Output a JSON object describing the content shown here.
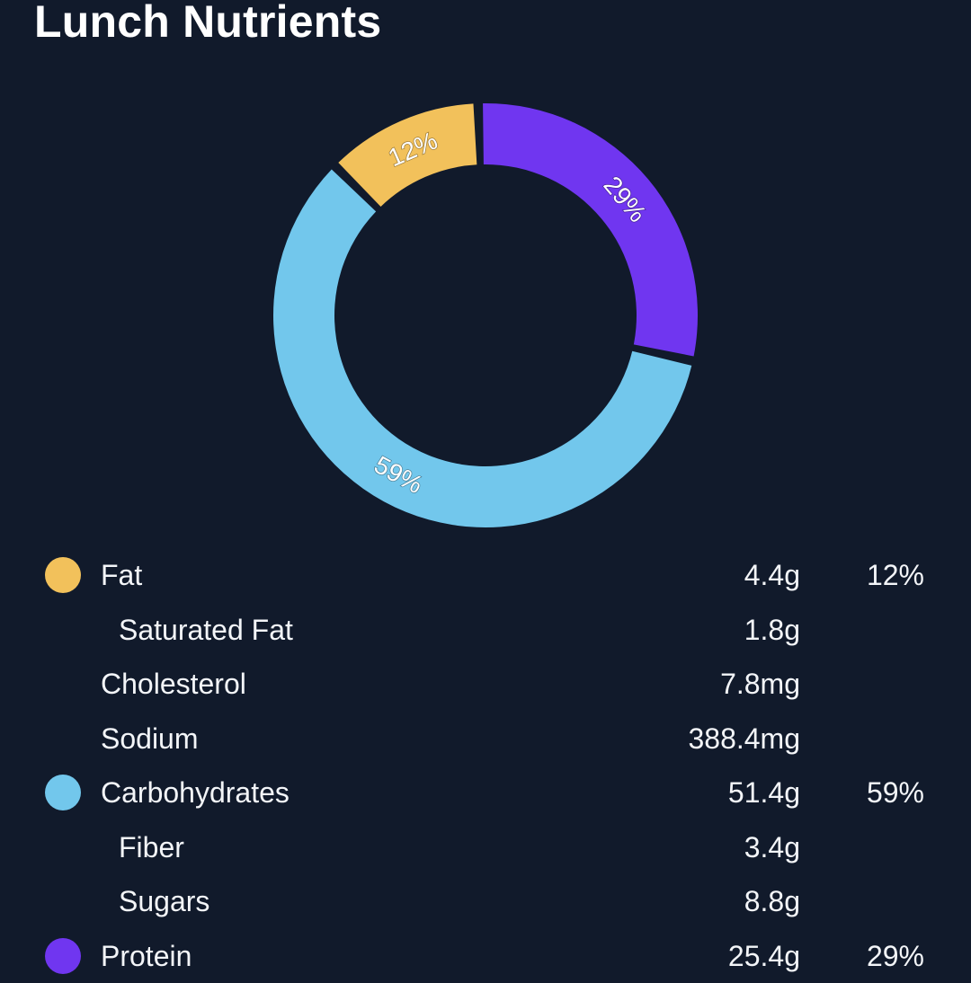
{
  "header": {
    "title": "Lunch Nutrients"
  },
  "colors": {
    "background": "#111a2b",
    "fat": "#f2c15b",
    "carbohydrates": "#72c7ec",
    "protein": "#7036f0"
  },
  "chart_data": {
    "type": "pie",
    "style": "donut",
    "title": "Lunch Nutrients",
    "slices": [
      {
        "name": "Protein",
        "value": 29,
        "label": "29%",
        "color": "#7036f0"
      },
      {
        "name": "Carbohydrates",
        "value": 59,
        "label": "59%",
        "color": "#72c7ec"
      },
      {
        "name": "Fat",
        "value": 12,
        "label": "12%",
        "color": "#f2c15b"
      }
    ]
  },
  "nutrients": [
    {
      "name": "Fat",
      "amount": "4.4g",
      "percent": "12%",
      "color": "#f2c15b",
      "sub": false
    },
    {
      "name": "Saturated Fat",
      "amount": "1.8g",
      "percent": "",
      "color": "",
      "sub": true
    },
    {
      "name": "Cholesterol",
      "amount": "7.8mg",
      "percent": "",
      "color": "",
      "sub": false
    },
    {
      "name": "Sodium",
      "amount": "388.4mg",
      "percent": "",
      "color": "",
      "sub": false
    },
    {
      "name": "Carbohydrates",
      "amount": "51.4g",
      "percent": "59%",
      "color": "#72c7ec",
      "sub": false
    },
    {
      "name": "Fiber",
      "amount": "3.4g",
      "percent": "",
      "color": "",
      "sub": true
    },
    {
      "name": "Sugars",
      "amount": "8.8g",
      "percent": "",
      "color": "",
      "sub": true
    },
    {
      "name": "Protein",
      "amount": "25.4g",
      "percent": "29%",
      "color": "#7036f0",
      "sub": false
    }
  ]
}
